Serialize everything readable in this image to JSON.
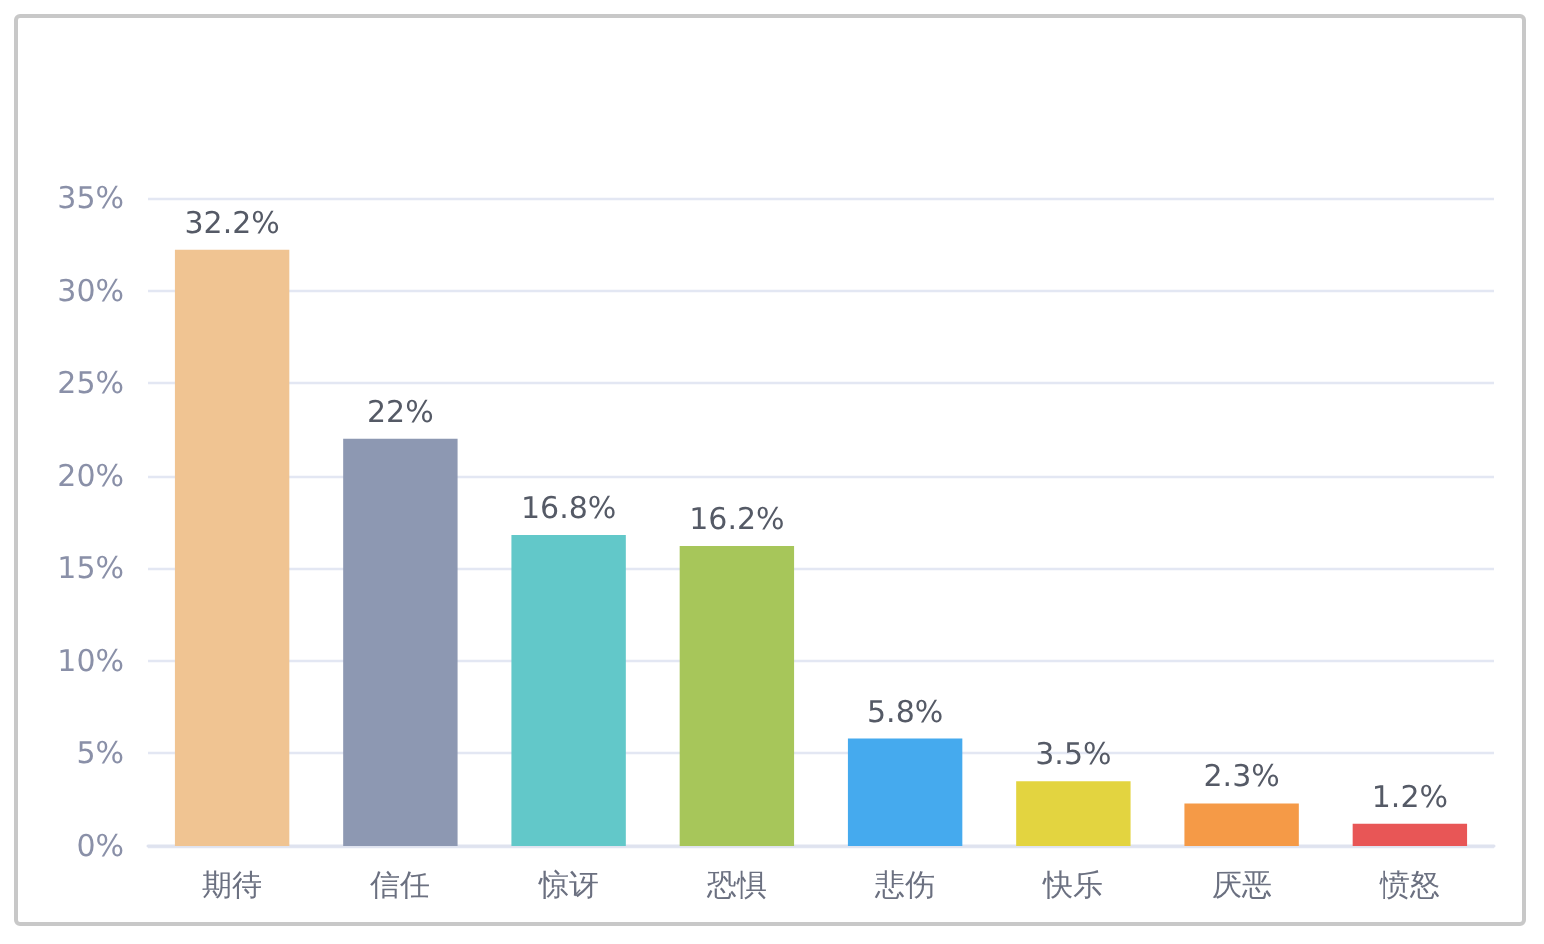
{
  "chart_data": {
    "type": "bar",
    "categories": [
      "期待",
      "信任",
      "惊讶",
      "恐惧",
      "悲伤",
      "快乐",
      "厌恶",
      "愤怒"
    ],
    "values": [
      32.2,
      22,
      16.8,
      16.2,
      5.8,
      3.5,
      2.3,
      1.2
    ],
    "colors": [
      "#f0c492",
      "#8d98b2",
      "#62c8c9",
      "#a7c65a",
      "#45aaee",
      "#e3d440",
      "#f59a47",
      "#e85656"
    ],
    "value_labels": [
      "32.2%",
      "22%",
      "16.8%",
      "16.2%",
      "5.8%",
      "3.5%",
      "2.3%",
      "1.2%"
    ],
    "ylim": [
      0,
      35
    ],
    "yticks": [
      {
        "value": 0,
        "label": "0%"
      },
      {
        "value": 5,
        "label": "5%"
      },
      {
        "value": 10,
        "label": "10%"
      },
      {
        "value": 15,
        "label": "15%"
      },
      {
        "value": 20,
        "label": "20%"
      },
      {
        "value": 25,
        "label": "25%"
      },
      {
        "value": 30,
        "label": "30%"
      },
      {
        "value": 35,
        "label": "35%"
      }
    ],
    "grid": "y"
  }
}
